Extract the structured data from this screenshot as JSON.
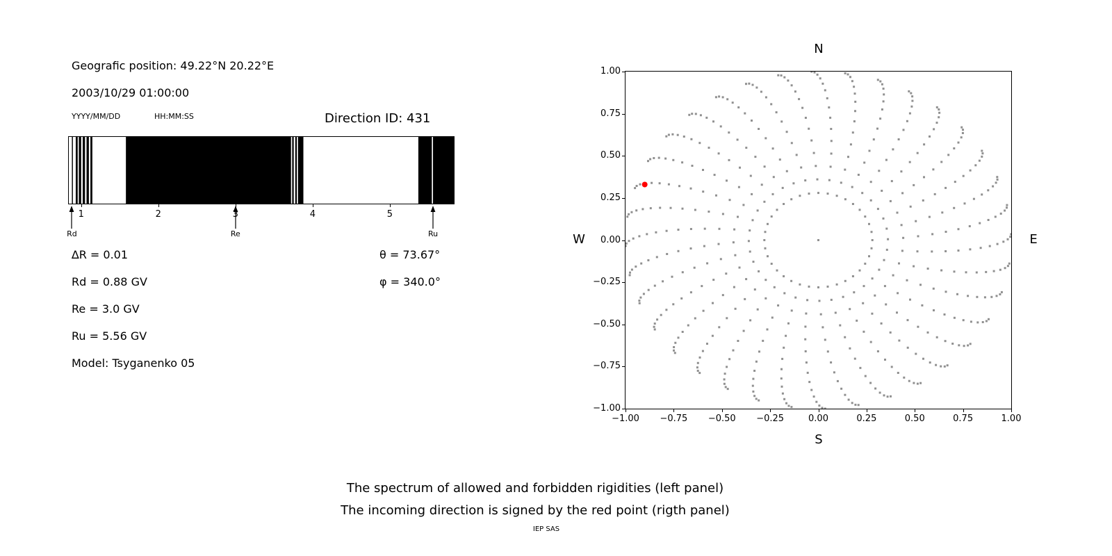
{
  "info": {
    "position": "Geografic position: 49.22°N 20.22°E",
    "datetime": "2003/10/29 01:00:00",
    "date_format": "YYYY/MM/DD",
    "time_format": "HH:MM:SS",
    "direction_id": "Direction ID: 431",
    "delta_r": "∆R = 0.01",
    "rd": "Rd = 0.88 GV",
    "re": "Re = 3.0 GV",
    "ru": "Ru = 5.56 GV",
    "model": "Model: Tsyganenko 05",
    "theta": "θ = 73.67°",
    "phi": "φ = 340.0°"
  },
  "caption": {
    "line1": "The spectrum of allowed and forbidden rigidities (left panel)",
    "line2": "The incoming direction is signed by the red point (rigth panel)",
    "credit": "IEP SAS"
  },
  "chart_data": [
    {
      "type": "bar",
      "subtype": "rigidity-barcode",
      "description": "Spectrum of allowed (black) and forbidden (white) rigidities vs rigidity in GV",
      "x_range": [
        0.84,
        5.83
      ],
      "x_ticks": [
        1,
        2,
        3,
        4,
        5
      ],
      "x_tick_labels": [
        "1",
        "2",
        "3",
        "4",
        "5"
      ],
      "allowed_color": "#000000",
      "forbidden_color": "#ffffff",
      "allowed_bands_gv": [
        [
          0.88,
          0.893
        ],
        [
          0.93,
          0.955
        ],
        [
          0.97,
          1.0
        ],
        [
          1.02,
          1.05
        ],
        [
          1.07,
          1.1
        ],
        [
          1.12,
          1.145
        ],
        [
          1.58,
          3.72
        ],
        [
          3.735,
          3.755
        ],
        [
          3.775,
          3.795
        ],
        [
          3.81,
          3.88
        ],
        [
          5.37,
          5.545
        ],
        [
          5.56,
          5.83
        ]
      ],
      "markers": [
        {
          "label": "Rd",
          "x": 0.88
        },
        {
          "label": "Re",
          "x": 3.0
        },
        {
          "label": "Ru",
          "x": 5.56
        }
      ]
    },
    {
      "type": "scatter",
      "subtype": "incoming-direction-map",
      "xlim": [
        -1,
        1
      ],
      "ylim": [
        -1,
        1
      ],
      "x_ticks": [
        -1,
        -0.75,
        -0.5,
        -0.25,
        0,
        0.25,
        0.5,
        0.75,
        1
      ],
      "x_tick_labels": [
        "−1.00",
        "−0.75",
        "−0.50",
        "−0.25",
        "0.00",
        "0.25",
        "0.50",
        "0.75",
        "1.00"
      ],
      "y_ticks": [
        1,
        0.75,
        0.5,
        0.25,
        0,
        -0.25,
        -0.5,
        -0.75,
        -1
      ],
      "y_tick_labels": [
        "1.00",
        "0.75",
        "0.50",
        "0.25",
        "0.00",
        "−0.25",
        "−0.50",
        "−0.75",
        "−1.00"
      ],
      "compass": {
        "top": "N",
        "bottom": "S",
        "left": "W",
        "right": "E"
      },
      "grid": false,
      "dot_color": "#909090",
      "center_dot": true,
      "spokes": {
        "count": 36,
        "inner_radius": 0.28,
        "outer_radius": 1.0,
        "dots_per_spoke": 15,
        "swirl_deg": 12
      },
      "red_point": {
        "x": -0.9,
        "y": 0.33,
        "color": "#ff0000"
      }
    }
  ]
}
